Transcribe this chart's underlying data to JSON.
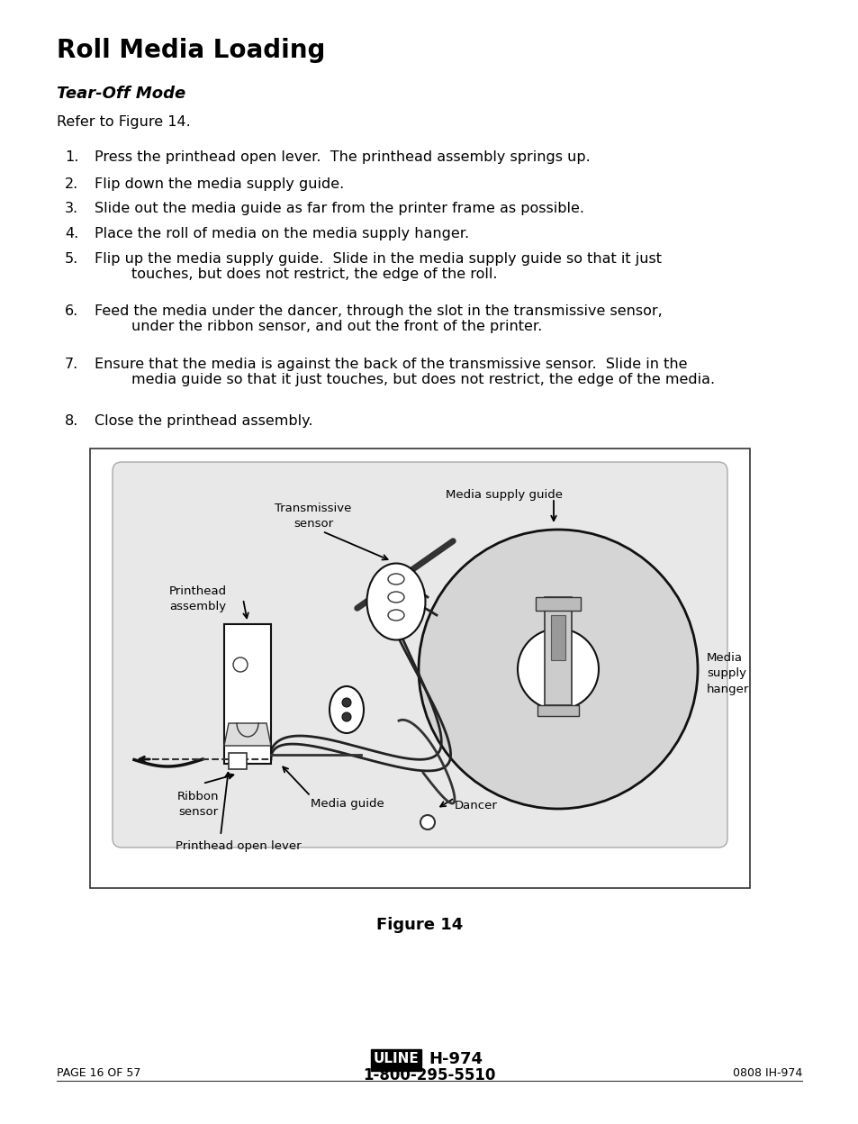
{
  "title": "Roll Media Loading",
  "subtitle": "Tear-Off Mode",
  "refer_text": "Refer to Figure 14.",
  "steps": [
    {
      "num": "1.",
      "text": "Press the printhead open lever.  The printhead assembly springs up."
    },
    {
      "num": "2.",
      "text": "Flip down the media supply guide."
    },
    {
      "num": "3.",
      "text": "Slide out the media guide as far from the printer frame as possible."
    },
    {
      "num": "4.",
      "text": "Place the roll of media on the media supply hanger."
    },
    {
      "num": "5.",
      "text": "Flip up the media supply guide.  Slide in the media supply guide so that it just\n        touches, but does not restrict, the edge of the roll."
    },
    {
      "num": "6.",
      "text": "Feed the media under the dancer, through the slot in the transmissive sensor,\n        under the ribbon sensor, and out the front of the printer."
    },
    {
      "num": "7.",
      "text": "Ensure that the media is against the back of the transmissive sensor.  Slide in the\n        media guide so that it just touches, but does not restrict, the edge of the media."
    },
    {
      "num": "8.",
      "text": "Close the printhead assembly."
    }
  ],
  "figure_caption": "Figure 14",
  "footer_left": "PAGE 16 OF 57",
  "footer_center_brand": "ULINE",
  "footer_center_model": "H-974",
  "footer_center_phone": "1-800-295-5510",
  "footer_right": "0808 IH-974",
  "bg_color": "#ffffff",
  "text_color": "#000000"
}
